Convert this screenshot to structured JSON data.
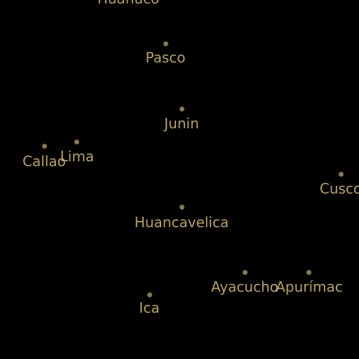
{
  "colors": {
    "background": "#000000",
    "dot": "#8a7a45",
    "label": "#b7a35b"
  },
  "places": [
    {
      "id": "huanuco",
      "label": "Huánuco"
    },
    {
      "id": "pasco",
      "label": "Pasco"
    },
    {
      "id": "junin",
      "label": "Junin"
    },
    {
      "id": "callao",
      "label": "Callao"
    },
    {
      "id": "lima",
      "label": "Lima"
    },
    {
      "id": "cusco",
      "label": "Cusco"
    },
    {
      "id": "huancavelica",
      "label": "Huancavelica"
    },
    {
      "id": "ayacucho",
      "label": "Ayacucho"
    },
    {
      "id": "apurimac",
      "label": "Apurímac"
    },
    {
      "id": "ica",
      "label": "Ica"
    }
  ]
}
